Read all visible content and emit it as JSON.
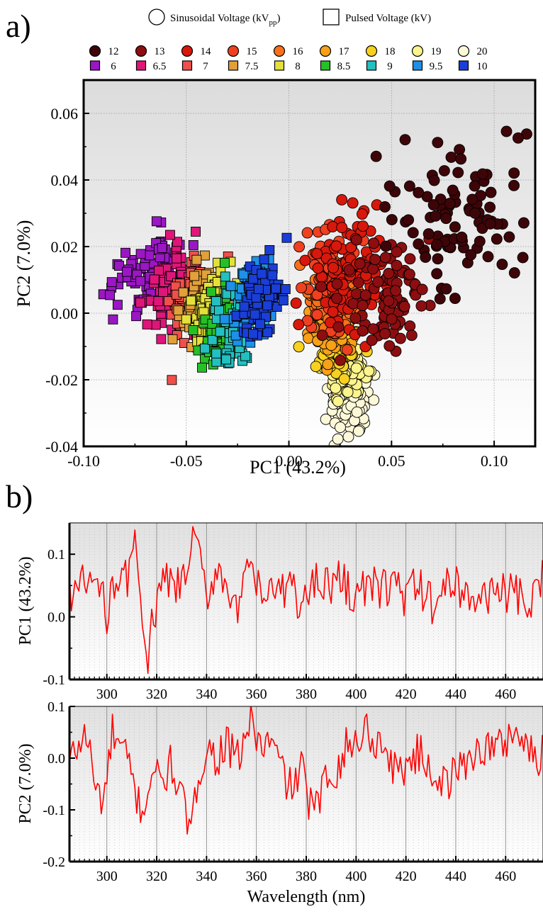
{
  "panel_labels": {
    "a": "a)",
    "b": "b)"
  },
  "legend": {
    "circle_label": "Sinusoidal Voltage (kV",
    "circle_label_sub": "pp",
    "circle_label_end": ")",
    "square_label": "Pulsed Voltage (kV)"
  },
  "chart_data": [
    {
      "type": "scatter",
      "title": "",
      "xlabel": "PC1 (43.2%)",
      "ylabel": "PC2 (7.0%)",
      "xlim": [
        -0.1,
        0.12
      ],
      "ylim": [
        -0.04,
        0.07
      ],
      "xticks": [
        -0.1,
        -0.05,
        0.0,
        0.05,
        0.1
      ],
      "xtick_labels": [
        "-0.10",
        "-0.05",
        "0.00",
        "0.05",
        "0.10"
      ],
      "yticks": [
        -0.04,
        -0.02,
        0.0,
        0.02,
        0.04,
        0.06
      ],
      "ytick_labels": [
        "-0.04",
        "-0.02",
        "0.00",
        "0.02",
        "0.04",
        "0.06"
      ],
      "grid": true,
      "legend_placement": "top",
      "series": [
        {
          "name": "6",
          "marker": "square",
          "color": "#9b16c4",
          "center": [
            -0.07,
            0.012
          ],
          "spread": [
            0.009,
            0.006
          ]
        },
        {
          "name": "6.5",
          "marker": "square",
          "color": "#e0157a",
          "center": [
            -0.057,
            0.006
          ],
          "spread": [
            0.007,
            0.006
          ]
        },
        {
          "name": "7",
          "marker": "square",
          "color": "#f0504a",
          "center": [
            -0.048,
            0.004
          ],
          "spread": [
            0.006,
            0.006
          ]
        },
        {
          "name": "7.5",
          "marker": "square",
          "color": "#e2a03a",
          "center": [
            -0.043,
            0.002
          ],
          "spread": [
            0.005,
            0.005
          ]
        },
        {
          "name": "8",
          "marker": "square",
          "color": "#e4e03a",
          "center": [
            -0.039,
            0.001
          ],
          "spread": [
            0.005,
            0.005
          ]
        },
        {
          "name": "8.5",
          "marker": "square",
          "color": "#26c026",
          "center": [
            -0.033,
            -0.003
          ],
          "spread": [
            0.006,
            0.006
          ]
        },
        {
          "name": "9",
          "marker": "square",
          "color": "#22c0c0",
          "center": [
            -0.026,
            -0.004
          ],
          "spread": [
            0.006,
            0.007
          ]
        },
        {
          "name": "9.5",
          "marker": "square",
          "color": "#1e90e8",
          "center": [
            -0.018,
            0.004
          ],
          "spread": [
            0.005,
            0.005
          ]
        },
        {
          "name": "10",
          "marker": "square",
          "color": "#1a3ed8",
          "center": [
            -0.013,
            0.004
          ],
          "spread": [
            0.005,
            0.006
          ]
        },
        {
          "name": "12",
          "marker": "circle",
          "color": "#3e0508",
          "center": [
            0.078,
            0.03
          ],
          "spread": [
            0.018,
            0.012
          ]
        },
        {
          "name": "13",
          "marker": "circle",
          "color": "#8c0e10",
          "center": [
            0.045,
            0.006
          ],
          "spread": [
            0.012,
            0.008
          ]
        },
        {
          "name": "14",
          "marker": "circle",
          "color": "#d8180c",
          "center": [
            0.03,
            0.012
          ],
          "spread": [
            0.01,
            0.009
          ]
        },
        {
          "name": "15",
          "marker": "circle",
          "color": "#f04020",
          "center": [
            0.022,
            0.01
          ],
          "spread": [
            0.008,
            0.007
          ]
        },
        {
          "name": "16",
          "marker": "circle",
          "color": "#f87018",
          "center": [
            0.02,
            0.004
          ],
          "spread": [
            0.006,
            0.005
          ]
        },
        {
          "name": "17",
          "marker": "circle",
          "color": "#f8a018",
          "center": [
            0.022,
            -0.003
          ],
          "spread": [
            0.005,
            0.005
          ]
        },
        {
          "name": "18",
          "marker": "circle",
          "color": "#f8d020",
          "center": [
            0.023,
            -0.008
          ],
          "spread": [
            0.005,
            0.005
          ]
        },
        {
          "name": "19",
          "marker": "circle",
          "color": "#fcf48c",
          "center": [
            0.027,
            -0.017
          ],
          "spread": [
            0.005,
            0.004
          ]
        },
        {
          "name": "20",
          "marker": "circle",
          "color": "#fcf8d8",
          "center": [
            0.03,
            -0.028
          ],
          "spread": [
            0.005,
            0.005
          ]
        }
      ]
    },
    {
      "type": "line",
      "title": "",
      "xlabel": "",
      "ylabel": "PC1 (43.2%)",
      "xlim": [
        285,
        475
      ],
      "ylim": [
        -0.1,
        0.15
      ],
      "xticks": [
        300,
        320,
        340,
        360,
        380,
        400,
        420,
        440,
        460
      ],
      "xtick_labels": [
        "300",
        "320",
        "340",
        "360",
        "380",
        "400",
        "420",
        "440",
        "460"
      ],
      "yticks": [
        -0.1,
        0.0,
        0.1
      ],
      "ytick_labels": [
        "-0.1",
        "0.0",
        "0.1"
      ],
      "grid": true,
      "color": "#ff0000",
      "x_range": [
        285,
        475
      ],
      "x_step": 0.75,
      "anchors": [
        [
          285,
          0.04
        ],
        [
          290,
          0.05
        ],
        [
          295,
          0.06
        ],
        [
          298,
          0.03
        ],
        [
          300,
          0.0
        ],
        [
          302,
          0.07
        ],
        [
          305,
          0.05
        ],
        [
          308,
          0.06
        ],
        [
          310,
          0.09
        ],
        [
          312,
          0.12
        ],
        [
          314,
          0.03
        ],
        [
          316,
          -0.1
        ],
        [
          318,
          -0.02
        ],
        [
          320,
          0.02
        ],
        [
          324,
          0.06
        ],
        [
          328,
          0.04
        ],
        [
          332,
          0.07
        ],
        [
          336,
          0.14
        ],
        [
          338,
          0.06
        ],
        [
          340,
          0.03
        ],
        [
          344,
          0.08
        ],
        [
          348,
          0.06
        ],
        [
          352,
          0.0
        ],
        [
          355,
          0.04
        ],
        [
          358,
          0.09
        ],
        [
          362,
          0.02
        ],
        [
          366,
          0.05
        ],
        [
          370,
          0.03
        ],
        [
          374,
          0.06
        ],
        [
          378,
          0.01
        ],
        [
          381,
          0.04
        ],
        [
          385,
          0.07
        ],
        [
          390,
          0.05
        ],
        [
          395,
          0.06
        ],
        [
          400,
          0.03
        ],
        [
          405,
          0.05
        ],
        [
          410,
          0.04
        ],
        [
          415,
          0.06
        ],
        [
          420,
          0.03
        ],
        [
          425,
          0.05
        ],
        [
          430,
          0.02
        ],
        [
          435,
          0.04
        ],
        [
          440,
          0.06
        ],
        [
          445,
          0.03
        ],
        [
          450,
          0.02
        ],
        [
          455,
          0.05
        ],
        [
          460,
          0.04
        ],
        [
          465,
          0.03
        ],
        [
          470,
          0.01
        ],
        [
          475,
          0.06
        ]
      ],
      "noise_amplitude": 0.035
    },
    {
      "type": "line",
      "title": "",
      "xlabel": "Wavelength (nm)",
      "ylabel": "PC2 (7.0%)",
      "xlim": [
        285,
        475
      ],
      "ylim": [
        -0.2,
        0.1
      ],
      "xticks": [
        300,
        320,
        340,
        360,
        380,
        400,
        420,
        440,
        460
      ],
      "xtick_labels": [
        "300",
        "320",
        "340",
        "360",
        "380",
        "400",
        "420",
        "440",
        "460"
      ],
      "yticks": [
        -0.2,
        -0.1,
        0.0,
        0.1
      ],
      "ytick_labels": [
        "-0.2",
        "-0.1",
        "0.0",
        "0.1"
      ],
      "grid": true,
      "color": "#ff0000",
      "x_range": [
        285,
        475
      ],
      "x_step": 0.75,
      "anchors": [
        [
          285,
          -0.01
        ],
        [
          288,
          0.02
        ],
        [
          292,
          0.05
        ],
        [
          295,
          -0.05
        ],
        [
          298,
          -0.08
        ],
        [
          300,
          -0.05
        ],
        [
          302,
          0.05
        ],
        [
          305,
          0.02
        ],
        [
          308,
          0.0
        ],
        [
          312,
          -0.08
        ],
        [
          315,
          -0.1
        ],
        [
          318,
          -0.02
        ],
        [
          322,
          -0.05
        ],
        [
          326,
          -0.01
        ],
        [
          330,
          -0.08
        ],
        [
          334,
          -0.15
        ],
        [
          337,
          -0.02
        ],
        [
          340,
          0.02
        ],
        [
          344,
          0.0
        ],
        [
          348,
          0.03
        ],
        [
          352,
          -0.01
        ],
        [
          356,
          0.05
        ],
        [
          358,
          0.07
        ],
        [
          362,
          0.02
        ],
        [
          366,
          0.03
        ],
        [
          370,
          -0.02
        ],
        [
          374,
          -0.06
        ],
        [
          378,
          -0.02
        ],
        [
          381,
          -0.08
        ],
        [
          384,
          -0.1
        ],
        [
          388,
          -0.04
        ],
        [
          392,
          -0.02
        ],
        [
          396,
          0.02
        ],
        [
          400,
          0.03
        ],
        [
          404,
          0.06
        ],
        [
          408,
          0.03
        ],
        [
          412,
          0.02
        ],
        [
          416,
          -0.03
        ],
        [
          420,
          -0.01
        ],
        [
          425,
          0.01
        ],
        [
          430,
          -0.02
        ],
        [
          435,
          -0.05
        ],
        [
          440,
          -0.03
        ],
        [
          445,
          0.0
        ],
        [
          450,
          0.02
        ],
        [
          455,
          0.02
        ],
        [
          460,
          0.03
        ],
        [
          463,
          0.06
        ],
        [
          466,
          0.04
        ],
        [
          470,
          0.01
        ],
        [
          473,
          -0.02
        ],
        [
          475,
          0.03
        ]
      ],
      "noise_amplitude": 0.04
    }
  ]
}
